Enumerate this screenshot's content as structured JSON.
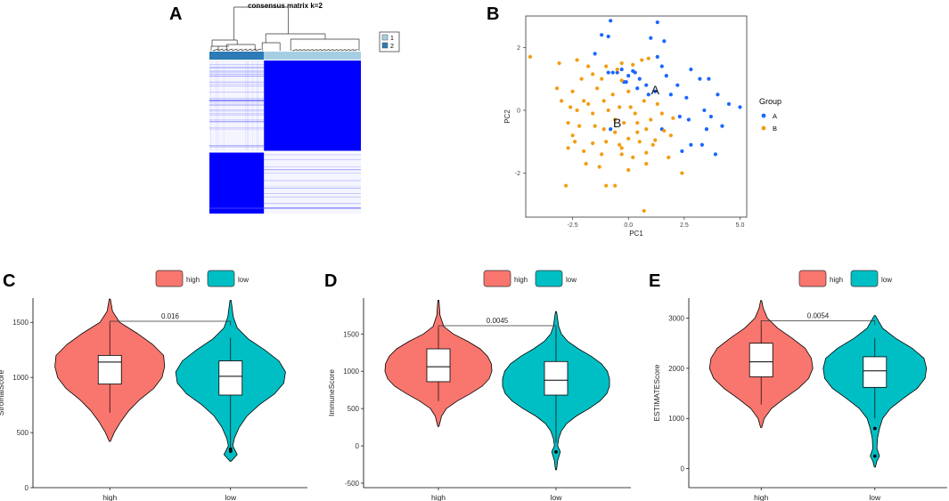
{
  "colors": {
    "heat_blue": "#0000ff",
    "dendro_dark": "#2c7bb6",
    "dendro_light": "#a6cee3",
    "group_a": "#1a66ff",
    "group_b": "#f39c12",
    "high": "#f8766d",
    "low": "#00bfc4"
  },
  "panels": {
    "A": {
      "letter": "A",
      "title": "consensus matrix k=2",
      "legend": [
        "1",
        "2"
      ]
    },
    "B": {
      "letter": "B",
      "group_title": "Group",
      "legend": [
        "A",
        "B"
      ],
      "centroid_labels": [
        "A",
        "B"
      ]
    },
    "C": {
      "letter": "C"
    },
    "D": {
      "letter": "D"
    },
    "E": {
      "letter": "E"
    }
  },
  "chart_data": [
    {
      "type": "heatmap",
      "title": "consensus matrix k=2",
      "clusters": [
        "1",
        "2"
      ],
      "cluster_fraction": [
        0.36,
        0.64
      ],
      "note": "consensus values 0-1, two diagonal blocks"
    },
    {
      "type": "scatter",
      "xlabel": "PC1",
      "ylabel": "PC2",
      "xlim": [
        -4.6,
        5.3
      ],
      "ylim": [
        -3.4,
        3.0
      ],
      "xticks": [
        "-2.5",
        "0.0",
        "2.5",
        "5.0"
      ],
      "xtick_values": [
        -2.5,
        0,
        2.5,
        5
      ],
      "yticks": [
        "-2",
        "0",
        "2"
      ],
      "ytick_values": [
        -2,
        0,
        2
      ],
      "legend_title": "Group",
      "series": [
        {
          "name": "A",
          "points": [
            [
              -0.8,
              2.85
            ],
            [
              1.3,
              2.8
            ],
            [
              -1.2,
              2.4
            ],
            [
              -0.9,
              2.35
            ],
            [
              1.0,
              2.3
            ],
            [
              1.6,
              2.2
            ],
            [
              -1.5,
              1.8
            ],
            [
              1.3,
              1.7
            ],
            [
              1.5,
              1.4
            ],
            [
              -0.3,
              1.3
            ],
            [
              -0.5,
              1.2
            ],
            [
              0.3,
              1.2
            ],
            [
              -0.9,
              1.2
            ],
            [
              -0.7,
              1.2
            ],
            [
              0.0,
              1.1
            ],
            [
              -0.2,
              0.9
            ],
            [
              0.5,
              1.0
            ],
            [
              0.2,
              1.25
            ],
            [
              2.8,
              1.3
            ],
            [
              3.2,
              1.0
            ],
            [
              3.6,
              1.0
            ],
            [
              1.7,
              1.1
            ],
            [
              2.2,
              0.8
            ],
            [
              0.8,
              0.8
            ],
            [
              -0.1,
              0.9
            ],
            [
              0.4,
              0.7
            ],
            [
              2.6,
              0.4
            ],
            [
              4.0,
              0.5
            ],
            [
              4.5,
              0.2
            ],
            [
              5.0,
              0.1
            ],
            [
              1.9,
              0.5
            ],
            [
              1.2,
              0.6
            ],
            [
              0.9,
              0.5
            ],
            [
              3.4,
              0.0
            ],
            [
              2.3,
              -0.2
            ],
            [
              2.7,
              -0.3
            ],
            [
              3.7,
              -0.2
            ],
            [
              4.2,
              -0.5
            ],
            [
              3.5,
              -0.6
            ],
            [
              -0.8,
              -0.6
            ],
            [
              1.5,
              -0.6
            ],
            [
              2.8,
              -1.1
            ],
            [
              3.3,
              -1.1
            ],
            [
              2.4,
              -1.3
            ],
            [
              3.9,
              -1.4
            ]
          ]
        },
        {
          "name": "B",
          "points": [
            [
              -4.4,
              1.7
            ],
            [
              -3.1,
              1.5
            ],
            [
              -2.3,
              1.6
            ],
            [
              -1.8,
              1.4
            ],
            [
              -1.0,
              1.4
            ],
            [
              -0.3,
              1.5
            ],
            [
              -0.5,
              1.3
            ],
            [
              0.2,
              1.45
            ],
            [
              0.9,
              1.65
            ],
            [
              0.6,
              1.6
            ],
            [
              -1.2,
              1.0
            ],
            [
              -1.6,
              1.15
            ],
            [
              -2.1,
              1.0
            ],
            [
              -0.3,
              0.95
            ],
            [
              -3.2,
              0.7
            ],
            [
              -2.5,
              0.6
            ],
            [
              -1.4,
              0.7
            ],
            [
              -0.7,
              0.5
            ],
            [
              0.0,
              0.6
            ],
            [
              0.7,
              0.3
            ],
            [
              1.3,
              0.2
            ],
            [
              -2.0,
              0.3
            ],
            [
              -1.8,
              0.2
            ],
            [
              -1.1,
              0.3
            ],
            [
              -3.0,
              0.3
            ],
            [
              -2.6,
              0.1
            ],
            [
              -2.3,
              0.0
            ],
            [
              -1.6,
              -0.1
            ],
            [
              -0.9,
              0.0
            ],
            [
              -0.4,
              0.1
            ],
            [
              0.1,
              0.1
            ],
            [
              0.3,
              -0.1
            ],
            [
              1.5,
              -0.1
            ],
            [
              2.0,
              -0.25
            ],
            [
              1.0,
              -0.3
            ],
            [
              0.4,
              -0.4
            ],
            [
              -0.2,
              -0.4
            ],
            [
              -0.6,
              -0.3
            ],
            [
              -1.5,
              -0.5
            ],
            [
              -2.2,
              -0.5
            ],
            [
              -2.7,
              -0.4
            ],
            [
              -1.1,
              -0.6
            ],
            [
              -0.6,
              -0.7
            ],
            [
              0.4,
              -0.7
            ],
            [
              0.8,
              -0.6
            ],
            [
              1.6,
              -0.65
            ],
            [
              1.9,
              -0.8
            ],
            [
              1.2,
              -0.95
            ],
            [
              0.5,
              -1.0
            ],
            [
              0.0,
              -0.9
            ],
            [
              -0.4,
              -1.1
            ],
            [
              -1.0,
              -1.0
            ],
            [
              -1.6,
              -1.05
            ],
            [
              -2.4,
              -1.0
            ],
            [
              -2.0,
              -1.3
            ],
            [
              -1.2,
              -1.4
            ],
            [
              -0.3,
              -1.4
            ],
            [
              0.2,
              -1.5
            ],
            [
              0.8,
              -1.35
            ],
            [
              -2.7,
              -1.2
            ],
            [
              -1.9,
              -1.7
            ],
            [
              -1.3,
              -1.8
            ],
            [
              0.0,
              -1.9
            ],
            [
              0.8,
              -1.7
            ],
            [
              1.8,
              -1.5
            ],
            [
              -2.8,
              -2.4
            ],
            [
              -1.0,
              -2.4
            ],
            [
              -0.6,
              -2.4
            ],
            [
              2.4,
              -2.0
            ],
            [
              0.7,
              -3.2
            ],
            [
              -0.3,
              -1.2
            ],
            [
              1.1,
              -1.1
            ],
            [
              -2.5,
              -0.8
            ]
          ]
        }
      ],
      "centroids": [
        {
          "label": "A",
          "x": 1.2,
          "y": 0.65
        },
        {
          "label": "B",
          "x": -0.5,
          "y": -0.4
        }
      ]
    },
    {
      "type": "violin",
      "panel": "C",
      "legend": [
        "high",
        "low"
      ],
      "categories": [
        "high",
        "low"
      ],
      "ylabel": "StromalScore",
      "ylim": [
        0,
        1720
      ],
      "yticks": [
        "0",
        "500",
        "1000",
        "1500"
      ],
      "ytick_values": [
        0,
        500,
        1000,
        1500
      ],
      "pvalue": "0.016",
      "bracket_y": 1510,
      "series": [
        {
          "name": "high",
          "min": 420,
          "max": 1710,
          "q1": 940,
          "median": 1140,
          "q3": 1200,
          "whisker_low": 680,
          "whisker_high": 1500,
          "mode": 1180,
          "outliers": [],
          "profile": [
            [
              420,
              0.01
            ],
            [
              500,
              0.08
            ],
            [
              600,
              0.2
            ],
            [
              700,
              0.35
            ],
            [
              800,
              0.55
            ],
            [
              900,
              0.8
            ],
            [
              1000,
              0.95
            ],
            [
              1100,
              1.0
            ],
            [
              1200,
              0.98
            ],
            [
              1300,
              0.78
            ],
            [
              1400,
              0.5
            ],
            [
              1500,
              0.18
            ],
            [
              1600,
              0.05
            ],
            [
              1710,
              0.01
            ]
          ]
        },
        {
          "name": "low",
          "min": 240,
          "max": 1700,
          "q1": 840,
          "median": 1010,
          "q3": 1150,
          "whisker_low": 360,
          "whisker_high": 1360,
          "mode": 1050,
          "outliers": [
            330,
            350
          ],
          "profile": [
            [
              240,
              0.01
            ],
            [
              300,
              0.12
            ],
            [
              380,
              0.04
            ],
            [
              450,
              0.07
            ],
            [
              550,
              0.16
            ],
            [
              650,
              0.3
            ],
            [
              750,
              0.52
            ],
            [
              850,
              0.8
            ],
            [
              950,
              0.97
            ],
            [
              1050,
              1.0
            ],
            [
              1150,
              0.88
            ],
            [
              1250,
              0.62
            ],
            [
              1350,
              0.32
            ],
            [
              1450,
              0.12
            ],
            [
              1550,
              0.05
            ],
            [
              1700,
              0.01
            ]
          ]
        }
      ]
    },
    {
      "type": "violin",
      "panel": "D",
      "legend": [
        "high",
        "low"
      ],
      "categories": [
        "high",
        "low"
      ],
      "ylabel": "ImmuneScore",
      "ylim": [
        -560,
        1980
      ],
      "yticks": [
        "-500",
        "0",
        "500",
        "1000",
        "1500"
      ],
      "ytick_values": [
        -500,
        0,
        500,
        1000,
        1500
      ],
      "pvalue": "0.0045",
      "bracket_y": 1610,
      "series": [
        {
          "name": "high",
          "min": 260,
          "max": 1950,
          "q1": 860,
          "median": 1060,
          "q3": 1300,
          "whisker_low": 600,
          "whisker_high": 1590,
          "mode": 1100,
          "outliers": [],
          "profile": [
            [
              260,
              0.01
            ],
            [
              400,
              0.06
            ],
            [
              500,
              0.15
            ],
            [
              600,
              0.35
            ],
            [
              700,
              0.6
            ],
            [
              800,
              0.82
            ],
            [
              900,
              0.95
            ],
            [
              1000,
              1.0
            ],
            [
              1100,
              0.99
            ],
            [
              1200,
              0.92
            ],
            [
              1300,
              0.78
            ],
            [
              1400,
              0.55
            ],
            [
              1500,
              0.28
            ],
            [
              1600,
              0.1
            ],
            [
              1750,
              0.03
            ],
            [
              1950,
              0.01
            ]
          ]
        },
        {
          "name": "low",
          "min": -320,
          "max": 1800,
          "q1": 680,
          "median": 880,
          "q3": 1130,
          "whisker_low": 40,
          "whisker_high": 1580,
          "mode": 900,
          "outliers": [
            -80
          ],
          "profile": [
            [
              -320,
              0.01
            ],
            [
              -200,
              0.03
            ],
            [
              -80,
              0.08
            ],
            [
              0,
              0.03
            ],
            [
              100,
              0.05
            ],
            [
              200,
              0.1
            ],
            [
              300,
              0.2
            ],
            [
              400,
              0.38
            ],
            [
              500,
              0.62
            ],
            [
              600,
              0.82
            ],
            [
              700,
              0.95
            ],
            [
              800,
              1.0
            ],
            [
              900,
              1.0
            ],
            [
              1000,
              0.96
            ],
            [
              1100,
              0.85
            ],
            [
              1200,
              0.66
            ],
            [
              1300,
              0.42
            ],
            [
              1400,
              0.22
            ],
            [
              1500,
              0.1
            ],
            [
              1600,
              0.05
            ],
            [
              1800,
              0.01
            ]
          ]
        }
      ]
    },
    {
      "type": "violin",
      "panel": "E",
      "legend": [
        "high",
        "low"
      ],
      "categories": [
        "high",
        "low"
      ],
      "ylabel": "ESTIMATEScore",
      "ylim": [
        -380,
        3400
      ],
      "yticks": [
        "0",
        "1000",
        "2000",
        "3000"
      ],
      "ytick_values": [
        0,
        1000,
        2000,
        3000
      ],
      "pvalue": "0.0054",
      "bracket_y": 2950,
      "series": [
        {
          "name": "high",
          "min": 820,
          "max": 3350,
          "q1": 1830,
          "median": 2130,
          "q3": 2500,
          "whisker_low": 1280,
          "whisker_high": 2950,
          "mode": 2200,
          "outliers": [],
          "profile": [
            [
              820,
              0.01
            ],
            [
              1000,
              0.06
            ],
            [
              1200,
              0.2
            ],
            [
              1400,
              0.45
            ],
            [
              1600,
              0.72
            ],
            [
              1800,
              0.92
            ],
            [
              2000,
              1.0
            ],
            [
              2200,
              0.97
            ],
            [
              2400,
              0.85
            ],
            [
              2600,
              0.6
            ],
            [
              2800,
              0.32
            ],
            [
              3000,
              0.12
            ],
            [
              3200,
              0.04
            ],
            [
              3350,
              0.01
            ]
          ]
        },
        {
          "name": "low",
          "min": 30,
          "max": 3050,
          "q1": 1620,
          "median": 1950,
          "q3": 2230,
          "whisker_low": 1000,
          "whisker_high": 2600,
          "mode": 2000,
          "outliers": [
            800,
            250
          ],
          "profile": [
            [
              30,
              0.01
            ],
            [
              150,
              0.04
            ],
            [
              250,
              0.09
            ],
            [
              400,
              0.04
            ],
            [
              600,
              0.05
            ],
            [
              800,
              0.09
            ],
            [
              1000,
              0.15
            ],
            [
              1200,
              0.3
            ],
            [
              1400,
              0.55
            ],
            [
              1600,
              0.82
            ],
            [
              1800,
              0.97
            ],
            [
              2000,
              1.0
            ],
            [
              2200,
              0.95
            ],
            [
              2400,
              0.72
            ],
            [
              2600,
              0.4
            ],
            [
              2800,
              0.15
            ],
            [
              3050,
              0.01
            ]
          ]
        }
      ]
    }
  ]
}
